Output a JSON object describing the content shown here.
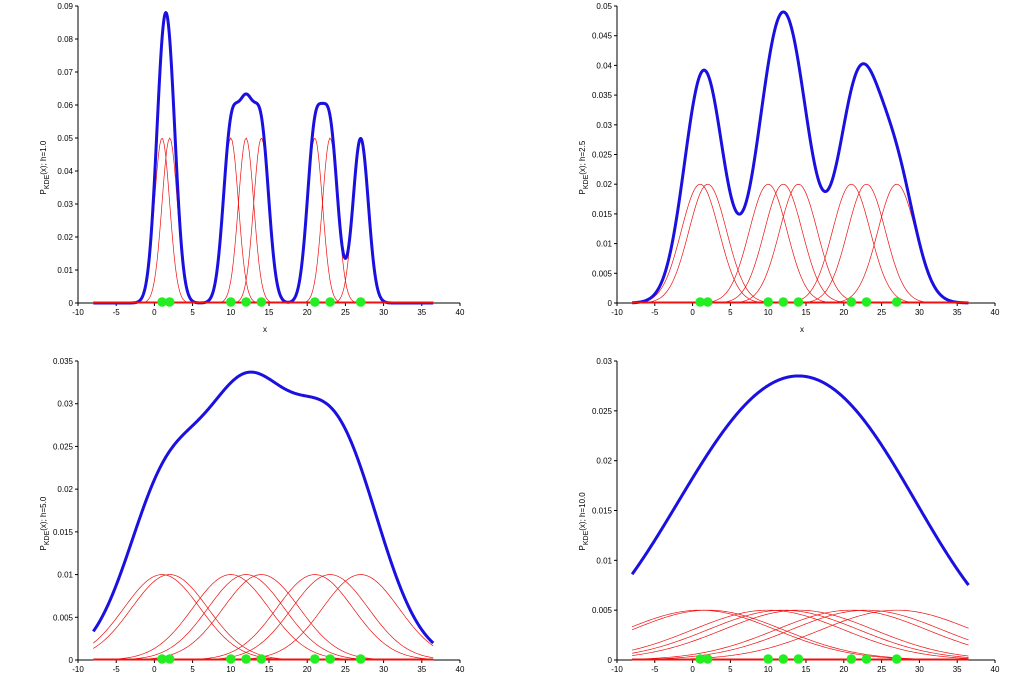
{
  "chart_data": [
    {
      "type": "line",
      "panel": "top-left",
      "bandwidth": 1.0,
      "ylabel": {
        "main": "P",
        "sub": "KDE",
        "rest": "(x); h=1.0"
      },
      "xlabel": "x",
      "xlim": [
        -10,
        40
      ],
      "ylim": [
        0,
        0.09
      ],
      "xticks": [
        "-10",
        "-5",
        "0",
        "5",
        "10",
        "15",
        "20",
        "25",
        "30",
        "35",
        "40"
      ],
      "yticks": [
        "0",
        "0.01",
        "0.02",
        "0.03",
        "0.04",
        "0.05",
        "0.06",
        "0.07",
        "0.08",
        "0.09"
      ],
      "kernel_peak": 0.05,
      "kde_peak": 0.088
    },
    {
      "type": "line",
      "panel": "top-right",
      "bandwidth": 2.5,
      "ylabel": {
        "main": "P",
        "sub": "KDE",
        "rest": "(x); h=2.5"
      },
      "xlabel": "x",
      "xlim": [
        -10,
        40
      ],
      "ylim": [
        0,
        0.05
      ],
      "xticks": [
        "-10",
        "-5",
        "0",
        "5",
        "10",
        "15",
        "20",
        "25",
        "30",
        "35",
        "40"
      ],
      "yticks": [
        "0",
        "0.005",
        "0.01",
        "0.015",
        "0.02",
        "0.025",
        "0.03",
        "0.035",
        "0.04",
        "0.045",
        "0.05"
      ],
      "kernel_peak": 0.02,
      "kde_peak": 0.049
    },
    {
      "type": "line",
      "panel": "bottom-left",
      "bandwidth": 5.0,
      "ylabel": {
        "main": "P",
        "sub": "KDE",
        "rest": "(x); h=5.0"
      },
      "xlabel": "",
      "xlim": [
        -10,
        40
      ],
      "ylim": [
        0,
        0.035
      ],
      "xticks": [
        "-10",
        "-5",
        "0",
        "5",
        "10",
        "15",
        "20",
        "25",
        "30",
        "35",
        "40"
      ],
      "yticks": [
        "0",
        "0.005",
        "0.01",
        "0.015",
        "0.02",
        "0.025",
        "0.03",
        "0.035"
      ],
      "kernel_peak": 0.01,
      "kde_peak": 0.0337
    },
    {
      "type": "line",
      "panel": "bottom-right",
      "bandwidth": 10.0,
      "ylabel": {
        "main": "P",
        "sub": "KDE",
        "rest": "(x); h=10.0"
      },
      "xlabel": "",
      "xlim": [
        -10,
        40
      ],
      "ylim": [
        0,
        0.03
      ],
      "xticks": [
        "-10",
        "-5",
        "0",
        "5",
        "10",
        "15",
        "20",
        "25",
        "30",
        "35",
        "40"
      ],
      "yticks": [
        "0",
        "0.005",
        "0.01",
        "0.015",
        "0.02",
        "0.025",
        "0.03"
      ],
      "kernel_peak": 0.005,
      "kde_peak": 0.0285
    }
  ],
  "samples": [
    1,
    2,
    10,
    12,
    14,
    21,
    23,
    27
  ],
  "x_range": [
    -8,
    36.5
  ],
  "colors": {
    "kde_curve": "#1a10e0",
    "kernels": "#ee1111",
    "sample_points": "#22ee22",
    "baseline": "#ee1111",
    "axes": "#000000"
  }
}
